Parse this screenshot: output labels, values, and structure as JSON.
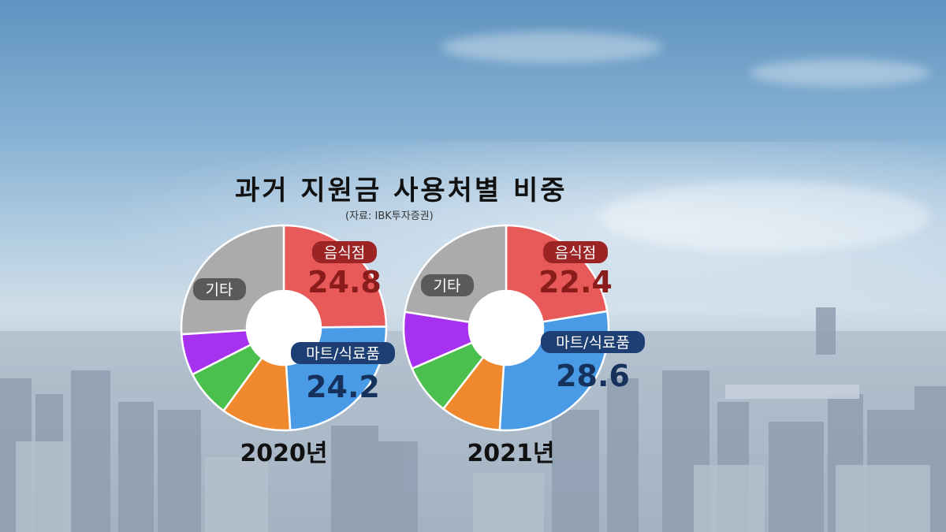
{
  "title": "과거 지원금 사용처별 비중",
  "source": "(자료: IBK투자증권)",
  "colors": {
    "restaurant": "#e85a5a",
    "mart": "#4a9be6",
    "orange": "#f0882d",
    "green": "#4cc04e",
    "purple": "#a632f0",
    "other": "#ababab"
  },
  "chart_data": [
    {
      "type": "pie",
      "year_label": "2020년",
      "slices": [
        {
          "label": "음식점",
          "value": 24.8,
          "color": "#e85a5a"
        },
        {
          "label": "마트/식료품",
          "value": 24.2,
          "color": "#4a9be6"
        },
        {
          "label": "",
          "value": 11.0,
          "color": "#f0882d"
        },
        {
          "label": "",
          "value": 7.5,
          "color": "#4cc04e"
        },
        {
          "label": "",
          "value": 6.5,
          "color": "#a632f0"
        },
        {
          "label": "기타",
          "value": 26.0,
          "color": "#ababab"
        }
      ]
    },
    {
      "type": "pie",
      "year_label": "2021년",
      "slices": [
        {
          "label": "음식점",
          "value": 22.4,
          "color": "#e85a5a"
        },
        {
          "label": "마트/식료품",
          "value": 28.6,
          "color": "#4a9be6"
        },
        {
          "label": "",
          "value": 9.5,
          "color": "#f0882d"
        },
        {
          "label": "",
          "value": 8.0,
          "color": "#4cc04e"
        },
        {
          "label": "",
          "value": 9.0,
          "color": "#a632f0"
        },
        {
          "label": "기타",
          "value": 22.5,
          "color": "#ababab"
        }
      ]
    }
  ]
}
